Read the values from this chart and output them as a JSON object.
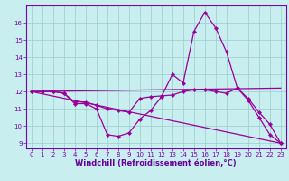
{
  "xlabel": "Windchill (Refroidissement éolien,°C)",
  "xlim": [
    -0.5,
    23.5
  ],
  "ylim": [
    8.7,
    17.0
  ],
  "yticks": [
    9,
    10,
    11,
    12,
    13,
    14,
    15,
    16
  ],
  "xticks": [
    0,
    1,
    2,
    3,
    4,
    5,
    6,
    7,
    8,
    9,
    10,
    11,
    12,
    13,
    14,
    15,
    16,
    17,
    18,
    19,
    20,
    21,
    22,
    23
  ],
  "bg_color": "#c8eef0",
  "grid_color": "#99cccc",
  "line_color": "#990099",
  "lines_with_markers": [
    {
      "x": [
        0,
        1,
        2,
        3,
        4,
        5,
        6,
        7,
        8,
        9,
        10,
        11,
        12,
        13,
        14,
        15,
        16,
        17,
        18,
        19,
        20,
        21,
        22,
        23
      ],
      "y": [
        12,
        12,
        12,
        11.9,
        11.3,
        11.3,
        11.0,
        9.5,
        9.4,
        9.6,
        10.4,
        10.9,
        11.7,
        13.0,
        12.5,
        15.5,
        16.6,
        15.7,
        14.3,
        12.2,
        11.5,
        10.5,
        9.5,
        9.0
      ]
    },
    {
      "x": [
        0,
        1,
        2,
        3,
        4,
        5,
        6,
        7,
        8,
        9,
        10,
        11,
        12,
        13,
        14,
        15,
        16,
        17,
        18,
        19,
        20,
        21,
        22,
        23
      ],
      "y": [
        12,
        12,
        12,
        11.9,
        11.4,
        11.4,
        11.2,
        11.0,
        10.9,
        10.8,
        11.6,
        11.7,
        11.75,
        11.8,
        12.0,
        12.1,
        12.1,
        12.0,
        11.9,
        12.2,
        11.6,
        10.8,
        10.1,
        9.0
      ]
    }
  ],
  "lines_straight": [
    {
      "x": [
        0,
        23
      ],
      "y": [
        12,
        9.0
      ]
    },
    {
      "x": [
        0,
        23
      ],
      "y": [
        12,
        12.2
      ]
    }
  ],
  "marker": "D",
  "markersize": 2.2,
  "linewidth": 0.9,
  "tick_fontsize": 5.0,
  "label_fontsize": 6.0,
  "tick_color": "#7700aa",
  "label_color": "#660099",
  "spine_color": "#7700aa"
}
